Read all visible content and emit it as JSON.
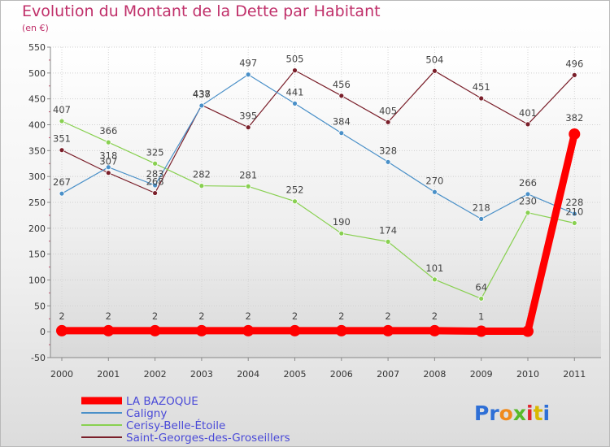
{
  "title": "Evolution du Montant de la Dette par Habitant",
  "subtitle": "(en €)",
  "logo": "Proxiti",
  "chart_data": {
    "type": "line",
    "x": [
      "2000",
      "2001",
      "2002",
      "2003",
      "2004",
      "2005",
      "2006",
      "2007",
      "2008",
      "2009",
      "2010",
      "2011"
    ],
    "ylim": [
      -50,
      550
    ],
    "yticks": [
      -50,
      0,
      50,
      100,
      150,
      200,
      250,
      300,
      350,
      400,
      450,
      500,
      550
    ],
    "grid": true,
    "legend_position": "bottom-left",
    "series": [
      {
        "name": "LA BAZOQUE",
        "color": "#ff0000",
        "values": [
          2,
          2,
          2,
          2,
          2,
          2,
          2,
          2,
          2,
          1,
          null,
          382
        ]
      },
      {
        "name": "Caligny",
        "color": "#4a90c8",
        "values": [
          267,
          318,
          283,
          437,
          497,
          441,
          384,
          328,
          270,
          218,
          266,
          228
        ]
      },
      {
        "name": "Cerisy-Belle-Étoile",
        "color": "#88d050",
        "values": [
          407,
          366,
          325,
          282,
          281,
          252,
          190,
          174,
          101,
          64,
          230,
          210
        ]
      },
      {
        "name": "Saint-Georges-des-Groseillers",
        "color": "#7a1f2a",
        "values": [
          351,
          307,
          268,
          438,
          395,
          505,
          456,
          405,
          504,
          451,
          401,
          496
        ]
      }
    ]
  }
}
